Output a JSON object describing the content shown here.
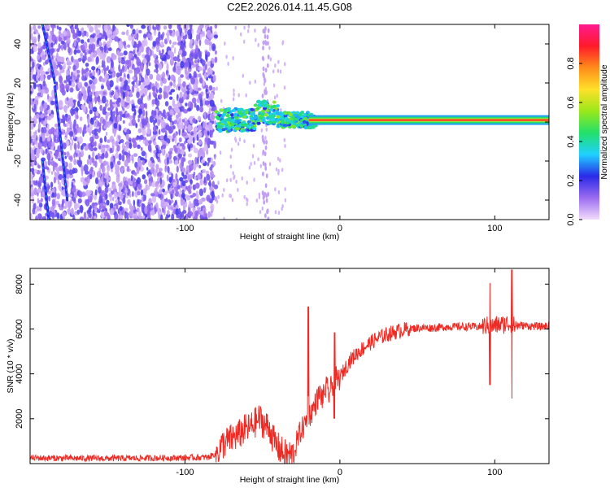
{
  "figure_title": "C2E2.2026.014.11.45.G08",
  "chart_data": [
    {
      "type": "heatmap",
      "name": "spectrogram",
      "xlabel": "Height of straight line (km)",
      "ylabel": "Frequency (Hz)",
      "xlim": [
        -200,
        135
      ],
      "ylim": [
        -50,
        50
      ],
      "xticks": [
        -100,
        0,
        100
      ],
      "xtick_labels": [
        "-100",
        "0",
        "100"
      ],
      "yticks": [
        -40,
        -20,
        0,
        20,
        40
      ],
      "ytick_labels": [
        "-40",
        "-20",
        "0",
        "20",
        "40"
      ],
      "colorbar": {
        "label": "Normalized spectral amplitude",
        "range": [
          0,
          1
        ],
        "ticks": [
          0.0,
          0.2,
          0.4,
          0.6,
          0.8
        ],
        "tick_labels": [
          "0.0",
          "0.2",
          "0.4",
          "0.6",
          "0.8"
        ],
        "colors": [
          "#f2ddfb",
          "#9b6cf0",
          "#2a2ae8",
          "#1fd0ff",
          "#22e06a",
          "#9ae81a",
          "#ffe02a",
          "#ff8c1a",
          "#ff1a2a",
          "#ff1a90"
        ]
      },
      "features": {
        "noise_region_x": [
          -200,
          -80
        ],
        "carrier_frequency_hz": 1,
        "carrier_start_x": -80,
        "diagonal_streaks": [
          {
            "x_start": -192,
            "y_start": 50,
            "x_end": -184,
            "y_end": 20
          },
          {
            "x_start": -184,
            "y_start": 18,
            "x_end": -176,
            "y_end": -40
          },
          {
            "x_start": -192,
            "y_start": -20,
            "x_end": -188,
            "y_end": -50
          }
        ]
      }
    },
    {
      "type": "line",
      "name": "snr",
      "xlabel": "Height of straight line (km)",
      "ylabel": "SNR (10 * v/v)",
      "xlim": [
        -200,
        135
      ],
      "ylim": [
        0,
        8700
      ],
      "xticks": [
        -100,
        0,
        100
      ],
      "xtick_labels": [
        "-100",
        "0",
        "100"
      ],
      "yticks": [
        2000,
        4000,
        6000,
        8000
      ],
      "ytick_labels": [
        "2000",
        "4000",
        "6000",
        "8000"
      ],
      "line_color": "#ee2a24",
      "series": [
        {
          "name": "SNR",
          "x": [
            -200,
            -150,
            -100,
            -85,
            -80,
            -75,
            -70,
            -65,
            -62,
            -58,
            -55,
            -52,
            -48,
            -45,
            -42,
            -39,
            -36,
            -33,
            -30,
            -28,
            -26,
            -23,
            -21,
            -19,
            -17,
            -15,
            -13,
            -11,
            -9,
            -7,
            -5,
            -3,
            -1,
            1,
            3,
            6,
            10,
            15,
            20,
            25,
            30,
            35,
            40,
            45,
            50,
            60,
            70,
            80,
            90,
            95,
            98,
            100,
            103,
            106,
            108,
            110,
            113,
            116,
            120,
            130,
            135
          ],
          "y": [
            250,
            230,
            260,
            280,
            450,
            900,
            1100,
            1300,
            1500,
            1600,
            1800,
            2000,
            1700,
            1500,
            900,
            650,
            420,
            380,
            420,
            900,
            1350,
            1700,
            2100,
            2200,
            2500,
            2800,
            3100,
            2900,
            3400,
            3100,
            3500,
            3800,
            3700,
            3950,
            4200,
            4550,
            4850,
            5150,
            5400,
            5600,
            5750,
            5850,
            5950,
            6000,
            6050,
            6050,
            6100,
            6100,
            6100,
            6150,
            6100,
            6150,
            6200,
            6200,
            6250,
            6200,
            6150,
            6150,
            6150,
            6100,
            6150
          ]
        }
      ],
      "spikes": [
        {
          "x": -20.5,
          "y_min": 3000,
          "y_max": 7000
        },
        {
          "x": -3.5,
          "y_min": 2000,
          "y_max": 5850
        },
        {
          "x": 96.8,
          "y_min": 3500,
          "y_max": 8050
        },
        {
          "x": 111,
          "y_min": 2900,
          "y_max": 8650
        }
      ]
    }
  ]
}
